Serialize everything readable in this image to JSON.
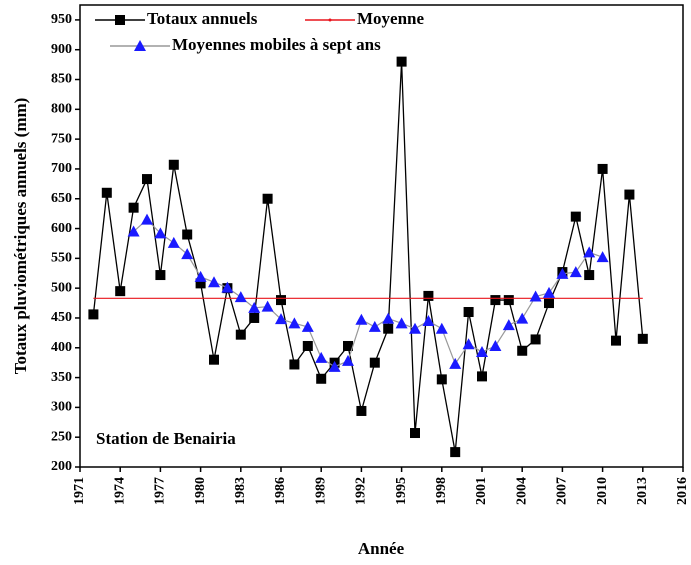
{
  "chart_data": {
    "type": "line",
    "y_label": "Totaux pluviométriques annuels (mm)",
    "x_label": "Année",
    "annotation": "Station de Benairia",
    "xlim": [
      1971,
      2016
    ],
    "xticks": [
      1971,
      1974,
      1977,
      1980,
      1983,
      1986,
      1989,
      1992,
      1995,
      1998,
      2001,
      2004,
      2007,
      2010,
      2013,
      2016
    ],
    "ylim": [
      200,
      975
    ],
    "yticks": [
      200,
      250,
      300,
      350,
      400,
      450,
      500,
      550,
      600,
      650,
      700,
      750,
      800,
      850,
      900,
      950
    ],
    "series": [
      {
        "name": "Totaux annuels",
        "color": "#000000",
        "marker": "square",
        "x": [
          1972,
          1973,
          1974,
          1975,
          1976,
          1977,
          1978,
          1979,
          1980,
          1981,
          1982,
          1983,
          1984,
          1985,
          1986,
          1987,
          1988,
          1989,
          1990,
          1991,
          1992,
          1993,
          1994,
          1995,
          1996,
          1997,
          1998,
          1999,
          2000,
          2001,
          2002,
          2003,
          2004,
          2005,
          2006,
          2007,
          2008,
          2009,
          2010,
          2011,
          2012,
          2013
        ],
        "values": [
          456,
          660,
          495,
          635,
          683,
          522,
          707,
          590,
          508,
          380,
          500,
          422,
          450,
          650,
          480,
          372,
          403,
          348,
          375,
          403,
          294,
          375,
          432,
          880,
          257,
          487,
          347,
          225,
          460,
          352,
          480,
          480,
          395,
          414,
          475,
          527,
          620,
          522,
          700,
          412,
          657,
          415
        ]
      },
      {
        "name": "Moyenne",
        "color": "#e8141c",
        "marker": "none",
        "x": [
          1972,
          2013
        ],
        "values": [
          483,
          483
        ]
      },
      {
        "name": "Moyennes mobiles à sept ans",
        "color": "#1a1aff",
        "line_color": "#999999",
        "marker": "triangle",
        "x": [
          1975,
          1976,
          1977,
          1978,
          1979,
          1980,
          1981,
          1982,
          1983,
          1984,
          1985,
          1986,
          1987,
          1988,
          1989,
          1990,
          1991,
          1992,
          1993,
          1994,
          1995,
          1996,
          1997,
          1998,
          1999,
          2000,
          2001,
          2002,
          2003,
          2004,
          2005,
          2006,
          2007,
          2008,
          2009,
          2010
        ],
        "values": [
          595,
          615,
          592,
          576,
          557,
          519,
          510,
          501,
          485,
          467,
          469,
          448,
          441,
          435,
          383,
          368,
          378,
          447,
          435,
          449,
          441,
          432,
          445,
          432,
          373,
          406,
          393,
          403,
          438,
          449,
          486,
          492,
          524,
          527,
          560,
          552
        ]
      }
    ]
  }
}
